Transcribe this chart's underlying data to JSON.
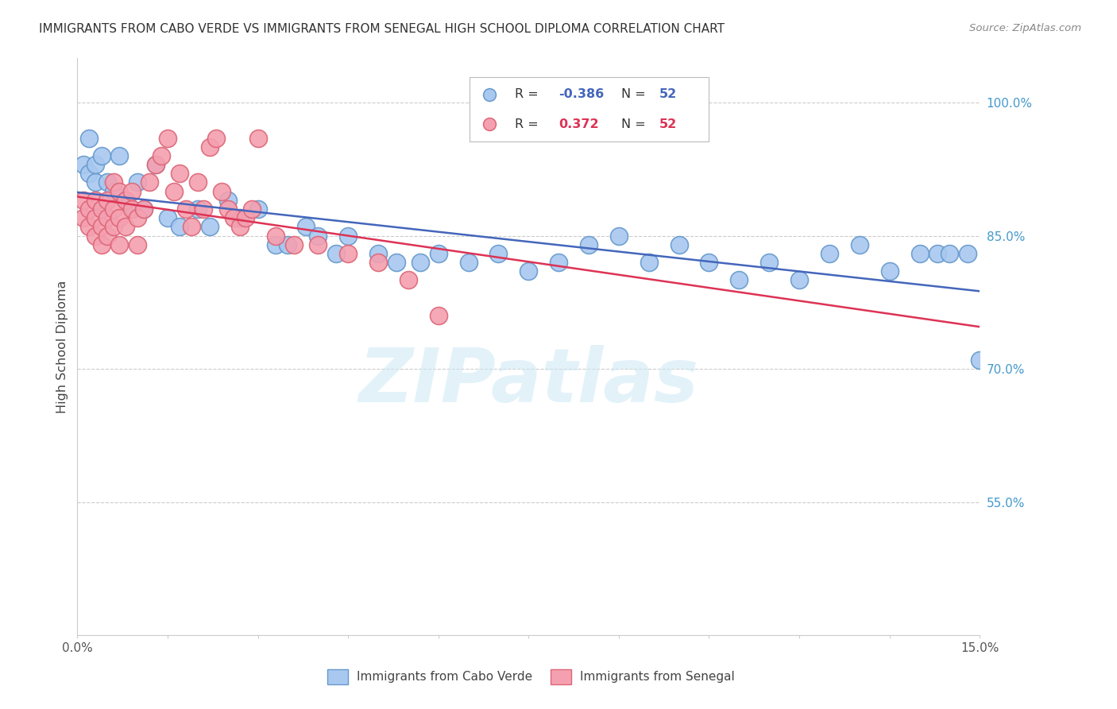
{
  "title": "IMMIGRANTS FROM CABO VERDE VS IMMIGRANTS FROM SENEGAL HIGH SCHOOL DIPLOMA CORRELATION CHART",
  "source": "Source: ZipAtlas.com",
  "xlabel_cabo": "Immigrants from Cabo Verde",
  "xlabel_senegal": "Immigrants from Senegal",
  "ylabel": "High School Diploma",
  "watermark": "ZIPatlas",
  "xlim": [
    0.0,
    0.15
  ],
  "ylim": [
    0.4,
    1.05
  ],
  "xtick_labels": [
    "0.0%",
    "",
    "",
    "",
    "",
    "",
    "",
    "",
    "",
    "15.0%"
  ],
  "xtick_vals": [
    0.0,
    0.015,
    0.03,
    0.045,
    0.06,
    0.075,
    0.09,
    0.105,
    0.12,
    0.15
  ],
  "ytick_labels": [
    "100.0%",
    "85.0%",
    "70.0%",
    "55.0%"
  ],
  "ytick_vals": [
    1.0,
    0.85,
    0.7,
    0.55
  ],
  "legend_cabo_r": "-0.386",
  "legend_cabo_n": "52",
  "legend_senegal_r": "0.372",
  "legend_senegal_n": "52",
  "cabo_color": "#a8c8f0",
  "cabo_edge_color": "#6699cc",
  "senegal_color": "#f4a0b0",
  "senegal_edge_color": "#dd6677",
  "cabo_line_color": "#4466bb",
  "senegal_line_color": "#dd3355",
  "cabo_x": [
    0.001,
    0.002,
    0.002,
    0.003,
    0.003,
    0.004,
    0.004,
    0.005,
    0.006,
    0.007,
    0.008,
    0.009,
    0.01,
    0.011,
    0.013,
    0.015,
    0.017,
    0.02,
    0.022,
    0.025,
    0.027,
    0.03,
    0.033,
    0.035,
    0.038,
    0.04,
    0.043,
    0.045,
    0.05,
    0.053,
    0.057,
    0.06,
    0.065,
    0.07,
    0.075,
    0.08,
    0.085,
    0.09,
    0.095,
    0.1,
    0.105,
    0.11,
    0.115,
    0.12,
    0.125,
    0.13,
    0.135,
    0.14,
    0.143,
    0.145,
    0.148,
    0.15
  ],
  "cabo_y": [
    0.93,
    0.96,
    0.92,
    0.91,
    0.93,
    0.88,
    0.94,
    0.91,
    0.9,
    0.94,
    0.89,
    0.88,
    0.91,
    0.88,
    0.93,
    0.87,
    0.86,
    0.88,
    0.86,
    0.89,
    0.87,
    0.88,
    0.84,
    0.84,
    0.86,
    0.85,
    0.83,
    0.85,
    0.83,
    0.82,
    0.82,
    0.83,
    0.82,
    0.83,
    0.81,
    0.82,
    0.84,
    0.85,
    0.82,
    0.84,
    0.82,
    0.8,
    0.82,
    0.8,
    0.83,
    0.84,
    0.81,
    0.83,
    0.83,
    0.83,
    0.83,
    0.71
  ],
  "senegal_x": [
    0.001,
    0.001,
    0.002,
    0.002,
    0.003,
    0.003,
    0.003,
    0.004,
    0.004,
    0.004,
    0.005,
    0.005,
    0.005,
    0.006,
    0.006,
    0.006,
    0.007,
    0.007,
    0.007,
    0.008,
    0.008,
    0.009,
    0.009,
    0.01,
    0.01,
    0.011,
    0.012,
    0.013,
    0.014,
    0.015,
    0.016,
    0.017,
    0.018,
    0.019,
    0.02,
    0.021,
    0.022,
    0.023,
    0.024,
    0.025,
    0.026,
    0.027,
    0.028,
    0.029,
    0.03,
    0.033,
    0.036,
    0.04,
    0.045,
    0.05,
    0.055,
    0.06
  ],
  "senegal_y": [
    0.89,
    0.87,
    0.86,
    0.88,
    0.87,
    0.85,
    0.89,
    0.86,
    0.88,
    0.84,
    0.87,
    0.89,
    0.85,
    0.91,
    0.88,
    0.86,
    0.9,
    0.87,
    0.84,
    0.86,
    0.89,
    0.88,
    0.9,
    0.87,
    0.84,
    0.88,
    0.91,
    0.93,
    0.94,
    0.96,
    0.9,
    0.92,
    0.88,
    0.86,
    0.91,
    0.88,
    0.95,
    0.96,
    0.9,
    0.88,
    0.87,
    0.86,
    0.87,
    0.88,
    0.96,
    0.85,
    0.84,
    0.84,
    0.83,
    0.82,
    0.8,
    0.76
  ]
}
